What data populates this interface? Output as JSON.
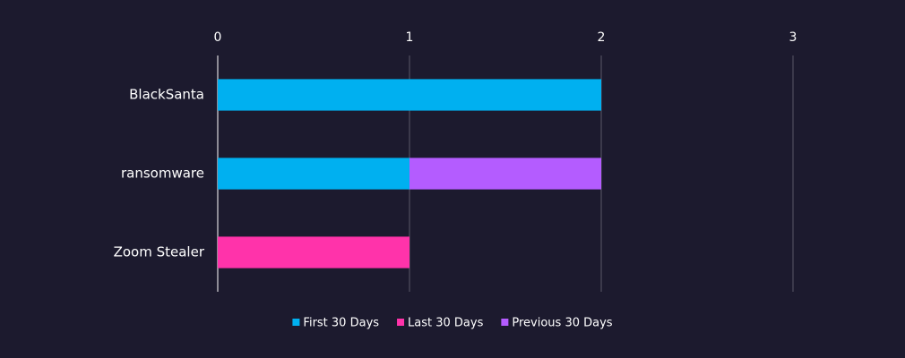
{
  "chart_data": {
    "type": "bar",
    "orientation": "horizontal",
    "stacked": true,
    "categories": [
      "BlackSanta",
      "ransomware",
      "Zoom Stealer"
    ],
    "series": [
      {
        "name": "First 30 Days",
        "color": "#00b0f0",
        "values": [
          2,
          1,
          0
        ]
      },
      {
        "name": "Last 30 Days",
        "color": "#ff33aa",
        "values": [
          0,
          0,
          1
        ]
      },
      {
        "name": "Previous 30 Days",
        "color": "#b45cff",
        "values": [
          0,
          1,
          0
        ]
      }
    ],
    "xlim": [
      0,
      3
    ],
    "xticks": [
      0,
      1,
      2,
      3
    ],
    "grid": true,
    "legend": "bottom"
  }
}
